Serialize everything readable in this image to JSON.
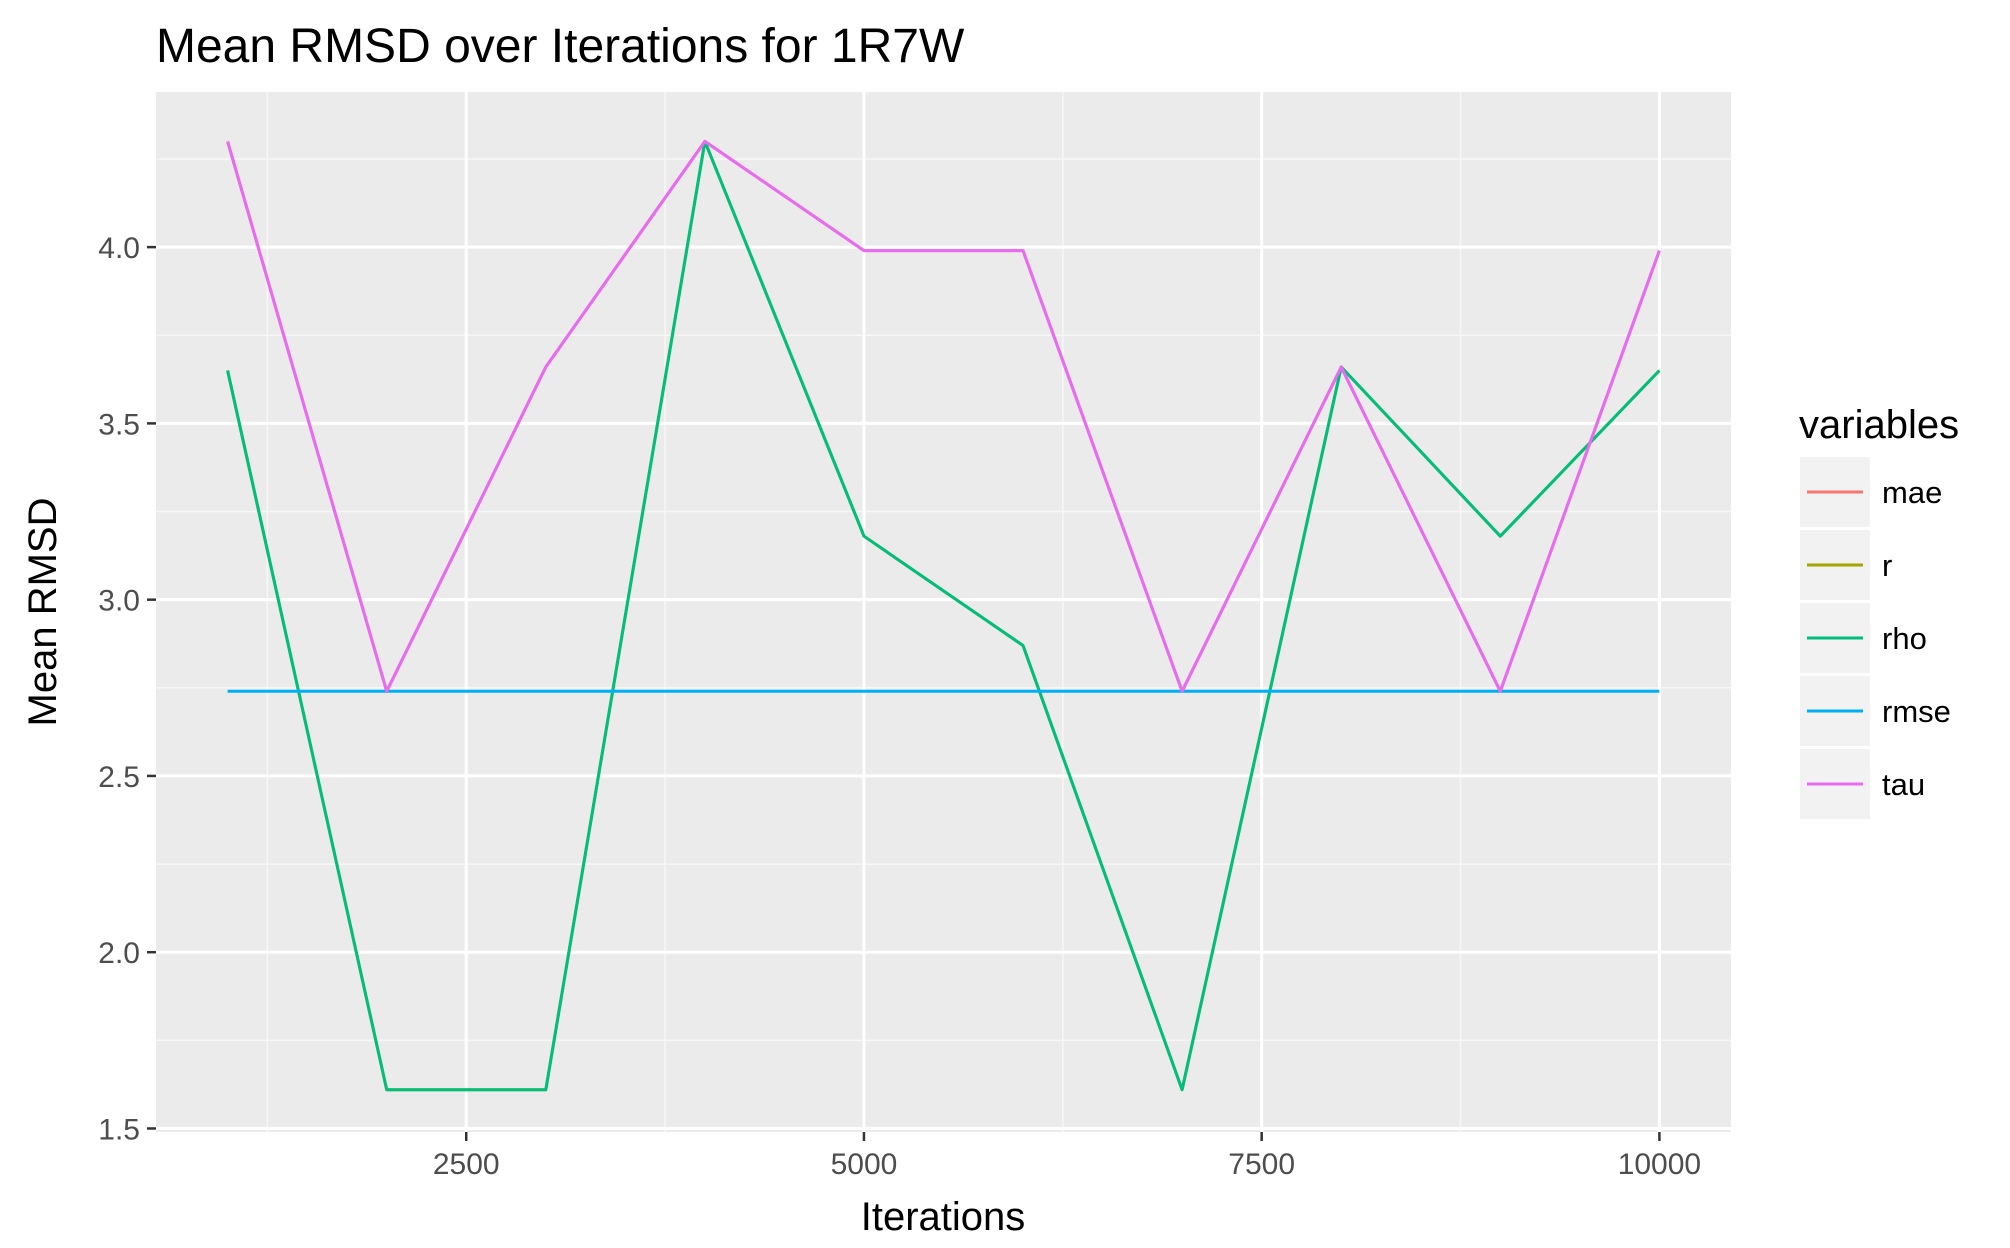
{
  "chart_data": {
    "type": "line",
    "title": "Mean RMSD over Iterations for 1R7W",
    "xlabel": "Iterations",
    "ylabel": "Mean RMSD",
    "xlim": [
      550,
      10450
    ],
    "ylim": [
      1.49,
      4.44
    ],
    "x_ticks": [
      2500,
      5000,
      7500,
      10000
    ],
    "y_ticks": [
      1.5,
      2.0,
      2.5,
      3.0,
      3.5,
      4.0
    ],
    "grid": true,
    "legend": {
      "title": "variables",
      "position": "right"
    },
    "x": [
      1000,
      2000,
      3000,
      4000,
      5000,
      6000,
      7000,
      8000,
      9000,
      10000
    ],
    "series": [
      {
        "name": "mae",
        "color": "#F8766D",
        "values": [
          4.3,
          2.74,
          3.66,
          4.3,
          3.99,
          3.99,
          2.74,
          3.66,
          2.74,
          3.99
        ]
      },
      {
        "name": "r",
        "color": "#A3A500",
        "values": [
          3.65,
          1.61,
          1.61,
          4.3,
          3.18,
          2.87,
          1.61,
          3.66,
          3.18,
          3.65
        ]
      },
      {
        "name": "rho",
        "color": "#00BF7D",
        "values": [
          3.65,
          1.61,
          1.61,
          4.3,
          3.18,
          2.87,
          1.61,
          3.66,
          3.18,
          3.65
        ]
      },
      {
        "name": "rmse",
        "color": "#00B0F6",
        "values": [
          2.74,
          2.74,
          2.74,
          2.74,
          2.74,
          2.74,
          2.74,
          2.74,
          2.74,
          2.74
        ]
      },
      {
        "name": "tau",
        "color": "#E76BF3",
        "values": [
          4.3,
          2.74,
          3.66,
          4.3,
          3.99,
          3.99,
          2.74,
          3.66,
          2.74,
          3.99
        ]
      }
    ]
  }
}
